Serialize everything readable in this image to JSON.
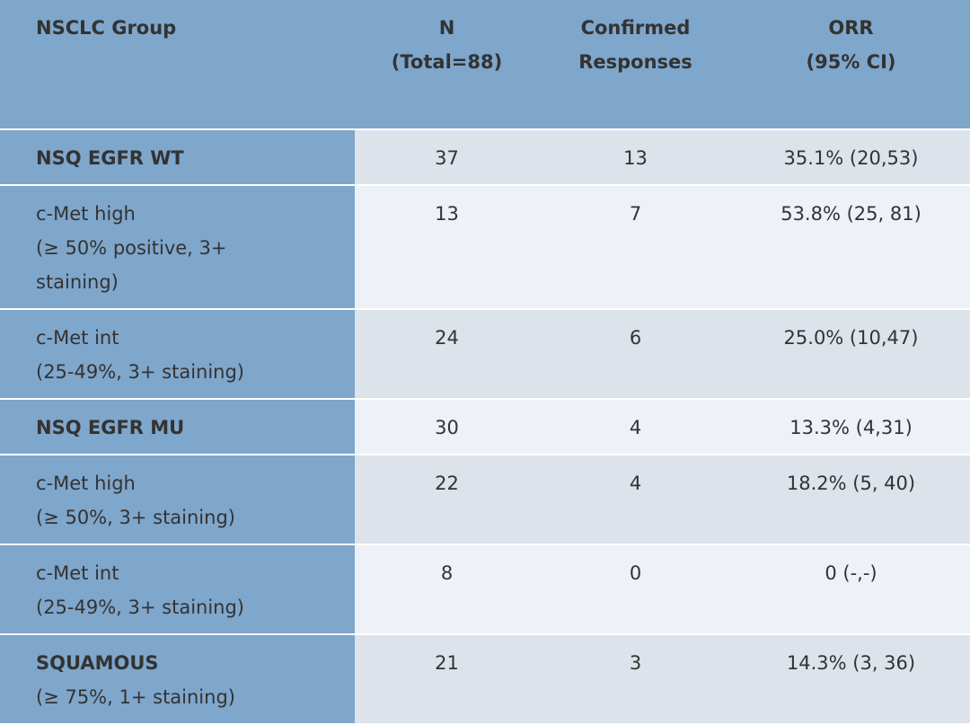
{
  "table": {
    "header": [
      [
        "NSCLC Group"
      ],
      [
        "N",
        "(Total=88)"
      ],
      [
        "Confirmed",
        "Responses"
      ],
      [
        "ORR",
        "(95% CI)"
      ]
    ],
    "groups": [
      {
        "name": "NSQ EGFR WT",
        "detail": [],
        "n": 37,
        "responses": 13,
        "orr": "35.1% (20,53)",
        "subgroups": [
          {
            "label": [
              "c-Met high",
              "(≥ 50% positive, 3+",
              "staining)"
            ],
            "n": 13,
            "responses": 7,
            "orr": "53.8% (25, 81)"
          },
          {
            "label": [
              "c-Met int",
              "(25-49%, 3+ staining)"
            ],
            "n": 24,
            "responses": 6,
            "orr": "25.0% (10,47)"
          }
        ]
      },
      {
        "name": "NSQ EGFR MU",
        "detail": [],
        "n": 30,
        "responses": 4,
        "orr": "13.3% (4,31)",
        "subgroups": [
          {
            "label": [
              "c-Met high",
              "(≥ 50%, 3+ staining)"
            ],
            "n": 22,
            "responses": 4,
            "orr": "18.2% (5, 40)"
          },
          {
            "label": [
              "c-Met int",
              "(25-49%, 3+ staining)"
            ],
            "n": 8,
            "responses": 0,
            "orr": "0 (-,-)"
          }
        ]
      },
      {
        "name": "SQUAMOUS",
        "detail": [
          "(≥ 75%, 1+ staining)"
        ],
        "n": 21,
        "responses": 3,
        "orr": "14.3% (3, 36)",
        "subgroups": []
      }
    ]
  }
}
